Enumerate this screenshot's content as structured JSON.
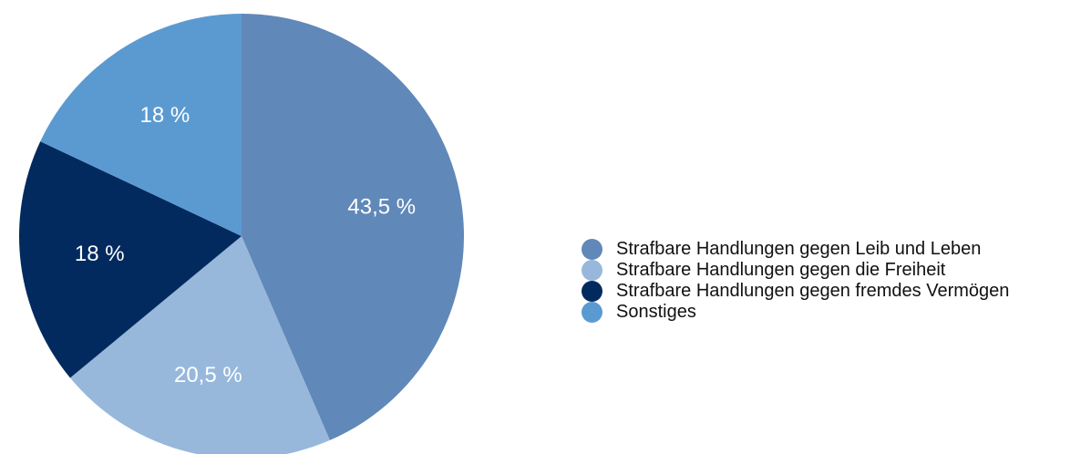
{
  "chart_data": {
    "type": "pie",
    "title": "",
    "start_angle": "12 o'clock, clockwise",
    "slices": [
      {
        "label": "Strafbare Handlungen gegen Leib und Leben",
        "value": 43.5,
        "value_label": "43,5 %",
        "color": "#6088b9"
      },
      {
        "label": "Strafbare Handlungen gegen die Freiheit",
        "value": 20.5,
        "value_label": "20,5 %",
        "color": "#97b8db"
      },
      {
        "label": "Strafbare Handlungen gegen fremdes Vermögen",
        "value": 18,
        "value_label": "18 %",
        "color": "#022a5e"
      },
      {
        "label": "Sonstiges",
        "value": 18,
        "value_label": "18 %",
        "color": "#5b9ad1"
      }
    ],
    "legend_position": "right"
  }
}
